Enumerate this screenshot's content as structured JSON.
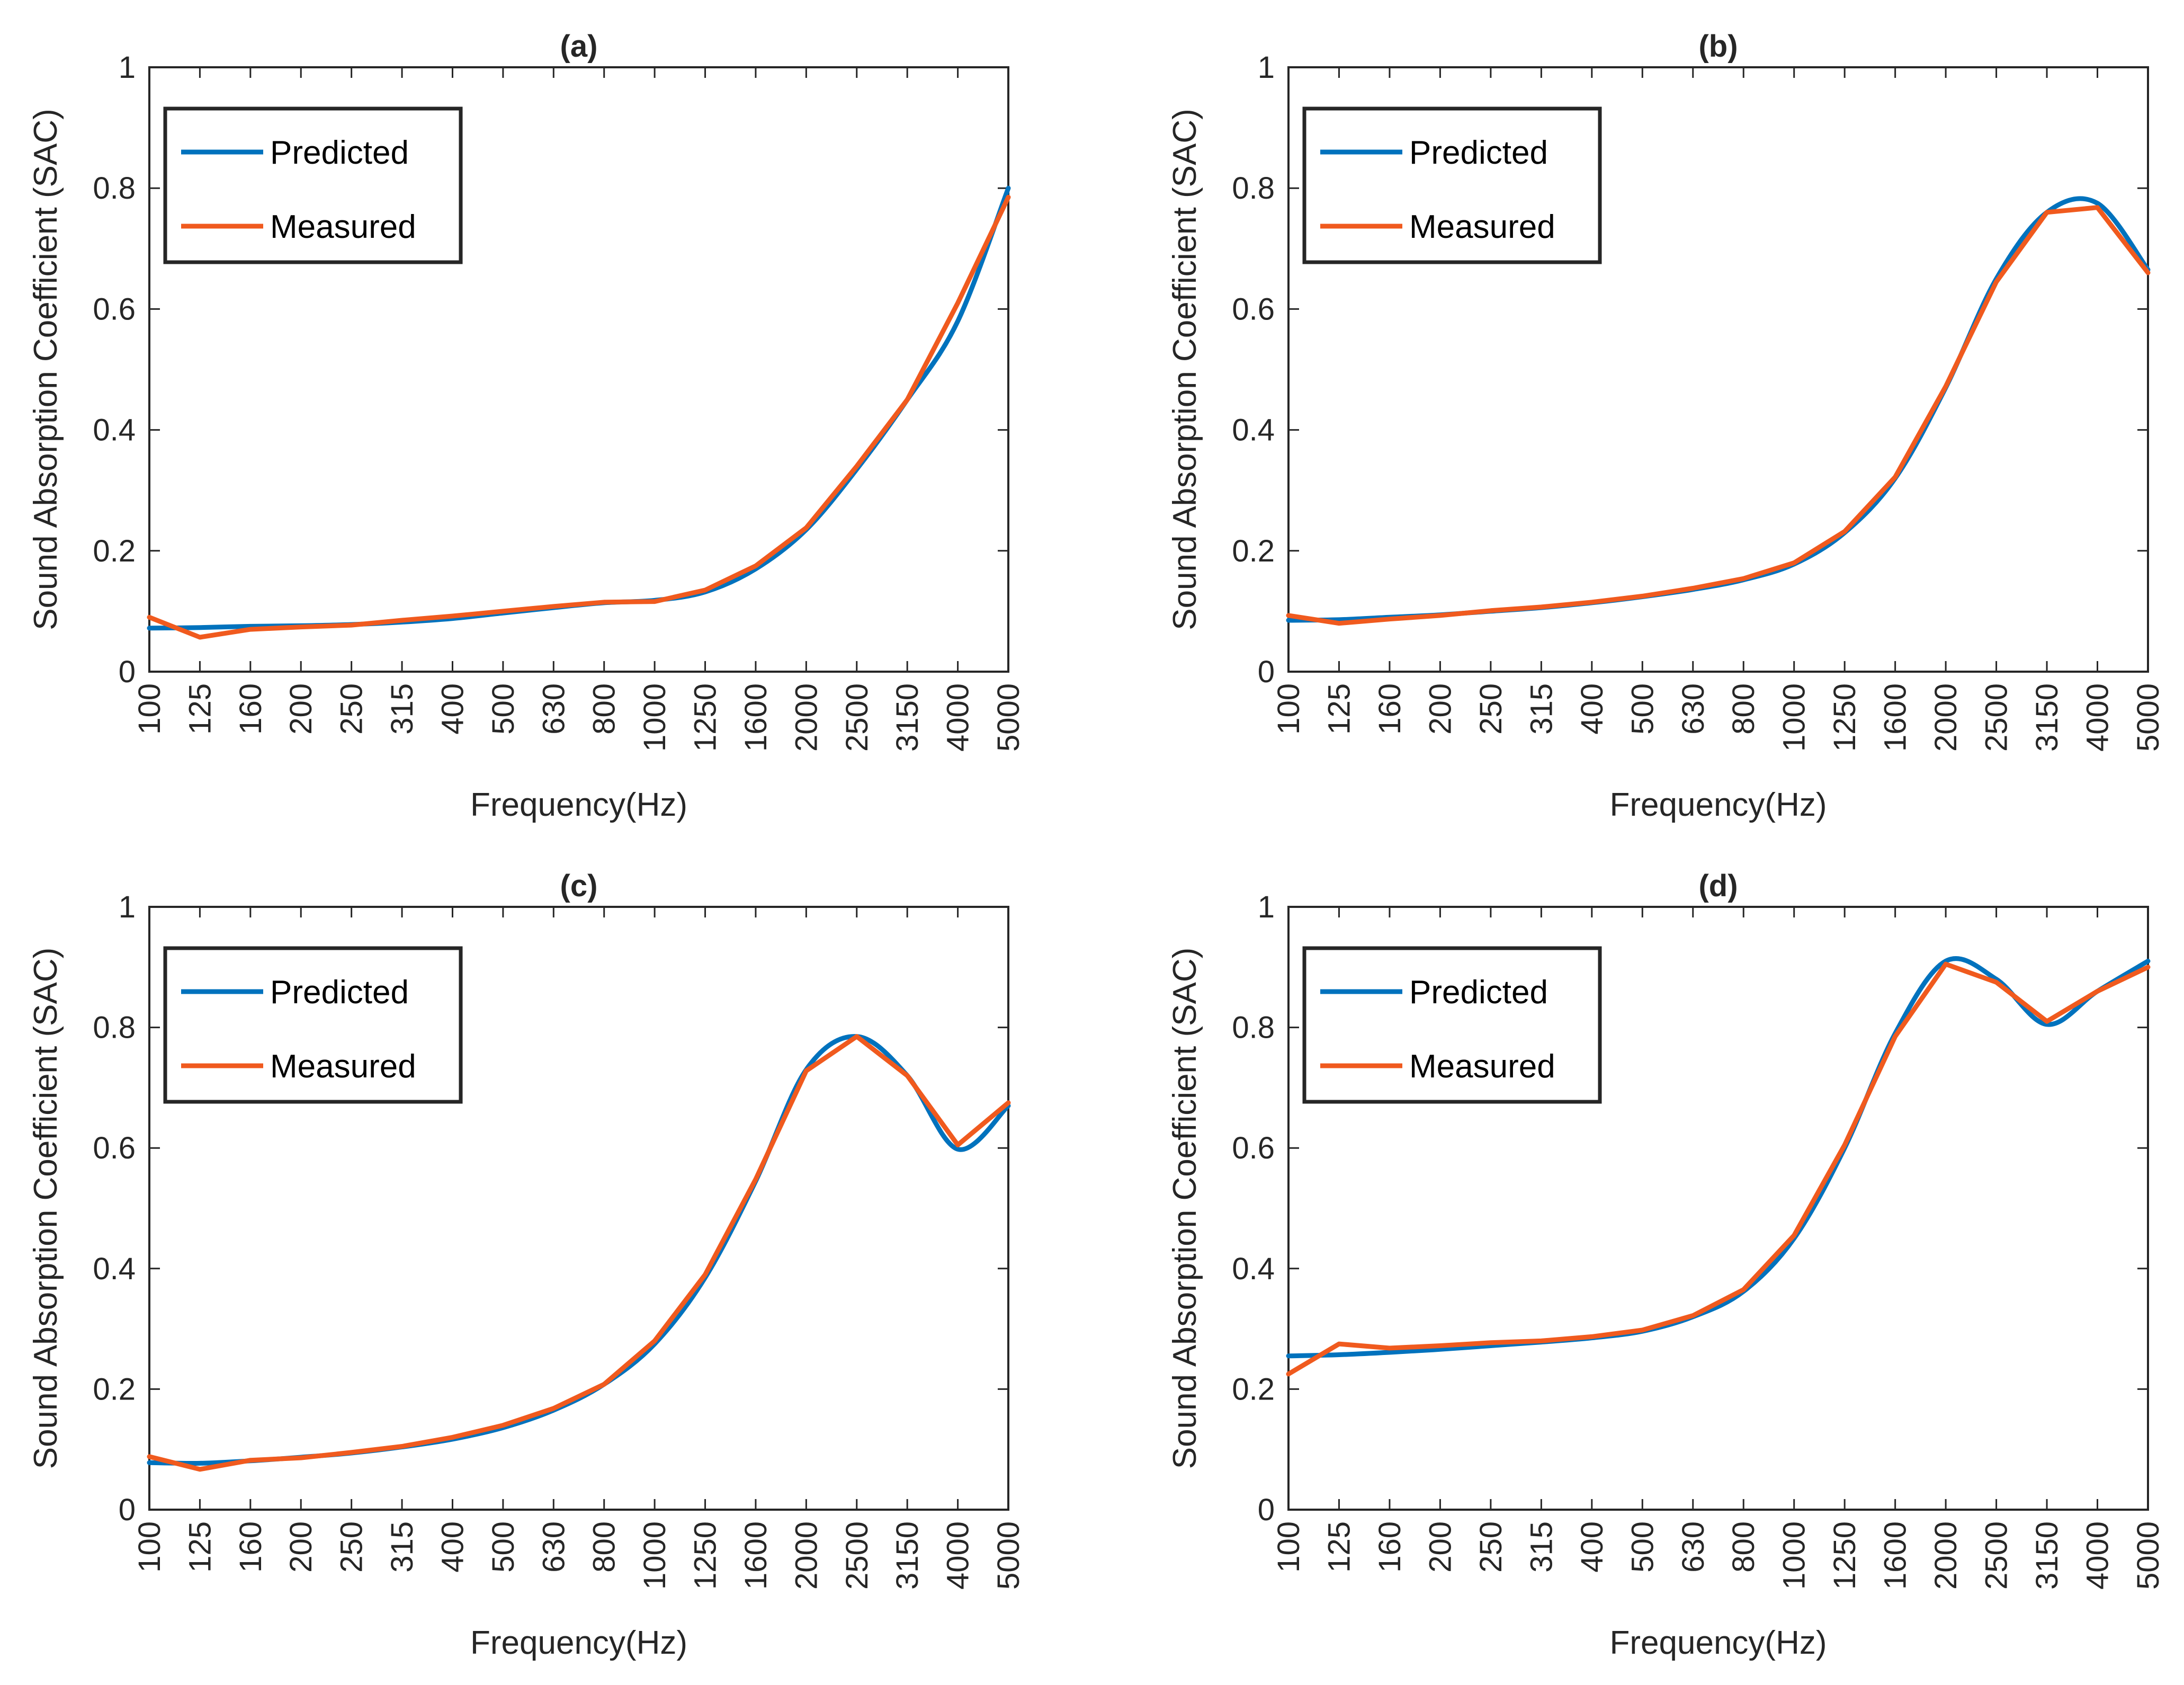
{
  "figure": {
    "colors": {
      "predicted": "#0072BD",
      "measured": "#F05A1E",
      "axis": "#262626"
    },
    "chart_data": [
      {
        "type": "line",
        "title": "(a)",
        "xlabel": "Frequency(Hz)",
        "ylabel": "Sound Absorption Coefficient (SAC)",
        "categories": [
          "100",
          "125",
          "160",
          "200",
          "250",
          "315",
          "400",
          "500",
          "630",
          "800",
          "1000",
          "1250",
          "1600",
          "2000",
          "2500",
          "3150",
          "4000",
          "5000"
        ],
        "ylim": [
          0,
          1
        ],
        "yticks": [
          "0",
          "0.2",
          "0.4",
          "0.6",
          "0.8",
          "1"
        ],
        "legend_position": "top-left",
        "series": [
          {
            "name": "Predicted",
            "values": [
              0.072,
              0.073,
              0.075,
              0.076,
              0.078,
              0.082,
              0.088,
              0.097,
              0.106,
              0.114,
              0.118,
              0.132,
              0.17,
              0.235,
              0.335,
              0.45,
              0.58,
              0.8
            ]
          },
          {
            "name": "Measured",
            "values": [
              0.09,
              0.057,
              0.07,
              0.074,
              0.077,
              0.085,
              0.092,
              0.1,
              0.108,
              0.115,
              0.116,
              0.135,
              0.175,
              0.238,
              0.34,
              0.45,
              0.61,
              0.785
            ]
          }
        ]
      },
      {
        "type": "line",
        "title": "(b)",
        "xlabel": "Frequency(Hz)",
        "ylabel": "Sound Absorption Coefficient (SAC)",
        "categories": [
          "100",
          "125",
          "160",
          "200",
          "250",
          "315",
          "400",
          "500",
          "630",
          "800",
          "1000",
          "1250",
          "1600",
          "2000",
          "2500",
          "3150",
          "4000",
          "5000"
        ],
        "ylim": [
          0,
          1
        ],
        "yticks": [
          "0",
          "0.2",
          "0.4",
          "0.6",
          "0.8",
          "1"
        ],
        "legend_position": "top-left",
        "series": [
          {
            "name": "Predicted",
            "values": [
              0.085,
              0.086,
              0.09,
              0.094,
              0.1,
              0.106,
              0.114,
              0.124,
              0.136,
              0.152,
              0.178,
              0.23,
              0.32,
              0.47,
              0.65,
              0.76,
              0.775,
              0.665
            ]
          },
          {
            "name": "Measured",
            "values": [
              0.093,
              0.08,
              0.087,
              0.093,
              0.101,
              0.107,
              0.115,
              0.125,
              0.138,
              0.154,
              0.18,
              0.232,
              0.322,
              0.472,
              0.645,
              0.76,
              0.768,
              0.66
            ]
          }
        ]
      },
      {
        "type": "line",
        "title": "(c)",
        "xlabel": "Frequency(Hz)",
        "ylabel": "Sound Absorption Coefficient (SAC)",
        "categories": [
          "100",
          "125",
          "160",
          "200",
          "250",
          "315",
          "400",
          "500",
          "630",
          "800",
          "1000",
          "1250",
          "1600",
          "2000",
          "2500",
          "3150",
          "4000",
          "5000"
        ],
        "ylim": [
          0,
          1
        ],
        "yticks": [
          "0",
          "0.2",
          "0.4",
          "0.6",
          "0.8",
          "1"
        ],
        "legend_position": "top-left",
        "series": [
          {
            "name": "Predicted",
            "values": [
              0.078,
              0.077,
              0.081,
              0.087,
              0.094,
              0.104,
              0.117,
              0.136,
              0.165,
              0.208,
              0.275,
              0.385,
              0.545,
              0.73,
              0.785,
              0.72,
              0.598,
              0.67
            ]
          },
          {
            "name": "Measured",
            "values": [
              0.088,
              0.067,
              0.082,
              0.086,
              0.095,
              0.105,
              0.12,
              0.14,
              0.168,
              0.208,
              0.28,
              0.39,
              0.548,
              0.728,
              0.785,
              0.72,
              0.605,
              0.675
            ]
          }
        ]
      },
      {
        "type": "line",
        "title": "(d)",
        "xlabel": "Frequency(Hz)",
        "ylabel": "Sound Absorption Coefficient (SAC)",
        "categories": [
          "100",
          "125",
          "160",
          "200",
          "250",
          "315",
          "400",
          "500",
          "630",
          "800",
          "1000",
          "1250",
          "1600",
          "2000",
          "2500",
          "3150",
          "4000",
          "5000"
        ],
        "ylim": [
          0,
          1
        ],
        "yticks": [
          "0",
          "0.2",
          "0.4",
          "0.6",
          "0.8",
          "1"
        ],
        "legend_position": "top-left",
        "series": [
          {
            "name": "Predicted",
            "values": [
              0.255,
              0.257,
              0.261,
              0.266,
              0.272,
              0.278,
              0.285,
              0.296,
              0.32,
              0.362,
              0.45,
              0.6,
              0.79,
              0.91,
              0.88,
              0.805,
              0.86,
              0.91
            ]
          },
          {
            "name": "Measured",
            "values": [
              0.225,
              0.275,
              0.268,
              0.272,
              0.277,
              0.28,
              0.287,
              0.298,
              0.322,
              0.365,
              0.455,
              0.605,
              0.785,
              0.905,
              0.875,
              0.81,
              0.86,
              0.9
            ]
          }
        ]
      }
    ]
  }
}
